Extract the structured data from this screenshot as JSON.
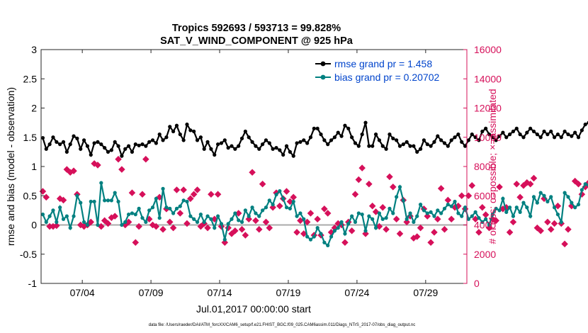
{
  "chart_data": {
    "type": "line",
    "title": "Tropics 592693 / 593713 = 99.828%",
    "subtitle": "SAT_V_WIND_COMPONENT @ 925 hPa",
    "xlabel": "Jul.01,2017 00:00:00 start",
    "ylabel": "rmse and bias (model - observation)",
    "y2label": "# of obs: o=possible; ×=assimilated",
    "footer": "data file: /Users/raeder/DAI/ATM_forcXX/CAM6_setup/f.e21.FHIST_BGC.f09_025.CAM6assim.011/Diags_NTrS_2017-07/obs_diag_output.nc",
    "xlim": [
      1,
      32
    ],
    "ylim": [
      -1,
      3
    ],
    "y2lim": [
      0,
      16000
    ],
    "x_ticks": [
      4,
      9,
      14,
      19,
      24,
      29
    ],
    "x_tick_labels": [
      "07/04",
      "07/09",
      "07/14",
      "07/19",
      "07/24",
      "07/29"
    ],
    "y_ticks": [
      -1,
      -0.5,
      0,
      0.5,
      1,
      1.5,
      2,
      2.5,
      3
    ],
    "y_tick_labels": [
      "-1",
      "-0.5",
      "0",
      "0.5",
      "1",
      "1.5",
      "2",
      "2.5",
      "3"
    ],
    "y2_ticks": [
      0,
      2000,
      4000,
      6000,
      8000,
      10000,
      12000,
      14000,
      16000
    ],
    "y2_tick_labels": [
      "0",
      "2000",
      "4000",
      "6000",
      "8000",
      "10000",
      "12000",
      "14000",
      "16000"
    ],
    "legend_position": "top-right",
    "colors": {
      "rmse": "#000000",
      "bias": "#008080",
      "obs": "#d6105a",
      "zero": "#aaaaaa",
      "legend_text": "#0044cc",
      "axis_right": "#d6105a"
    },
    "x_start": 1.125,
    "x_step": 0.25,
    "series": [
      {
        "name": "rmse grand pr = 1.458",
        "values": [
          1.49,
          1.3,
          1.38,
          1.5,
          1.42,
          1.38,
          1.42,
          1.25,
          1.38,
          1.52,
          1.48,
          1.3,
          1.45,
          1.35,
          1.2,
          1.4,
          1.42,
          1.38,
          1.32,
          1.25,
          1.28,
          1.42,
          1.35,
          1.18,
          1.3,
          1.35,
          1.25,
          1.38,
          1.36,
          1.38,
          1.35,
          1.42,
          1.45,
          1.4,
          1.55,
          1.45,
          1.5,
          1.68,
          1.6,
          1.7,
          1.55,
          1.45,
          1.72,
          1.62,
          1.6,
          1.45,
          1.5,
          1.3,
          1.42,
          1.3,
          1.2,
          1.38,
          1.4,
          1.45,
          1.32,
          1.35,
          1.3,
          1.35,
          1.48,
          1.6,
          1.5,
          1.42,
          1.35,
          1.3,
          1.38,
          1.45,
          1.4,
          1.3,
          1.32,
          1.28,
          1.2,
          1.35,
          1.25,
          1.18,
          1.4,
          1.42,
          1.45,
          1.4,
          1.5,
          1.65,
          1.65,
          1.55,
          1.45,
          1.38,
          1.45,
          1.5,
          1.58,
          1.52,
          1.7,
          1.65,
          1.5,
          1.4,
          1.35,
          1.55,
          1.75,
          1.35,
          1.35,
          1.55,
          1.45,
          1.35,
          1.3,
          1.55,
          1.48,
          1.45,
          1.35,
          1.38,
          1.42,
          1.35,
          1.35,
          1.25,
          1.3,
          1.45,
          1.38,
          1.35,
          1.42,
          1.52,
          1.45,
          1.4,
          1.35,
          1.45,
          1.5,
          1.55,
          1.42,
          1.35,
          1.45,
          1.55,
          1.5,
          1.45,
          1.6,
          1.65,
          1.55,
          1.5,
          1.45,
          1.52,
          1.58,
          1.5,
          1.55,
          1.6,
          1.65,
          1.55,
          1.5,
          1.58,
          1.65,
          1.6,
          1.55,
          1.5,
          1.6,
          1.55,
          1.6,
          1.5,
          1.55,
          1.5,
          1.6,
          1.55,
          1.52,
          1.58,
          1.5,
          1.62,
          1.72,
          1.75,
          1.7,
          1.6,
          1.55,
          1.8,
          1.65,
          1.62
        ]
      },
      {
        "name": "bias grand pr = 0.20702",
        "values": [
          0.18,
          0.05,
          0.15,
          0.25,
          0.05,
          0.3,
          0.1,
          0.15,
          -0.05,
          0.15,
          0.5,
          0.38,
          0.05,
          0.0,
          0.4,
          0.4,
          0.0,
          0.72,
          0.42,
          0.42,
          0.42,
          0.55,
          0.4,
          0.0,
          0.05,
          0.18,
          0.2,
          0.18,
          0.28,
          0.12,
          0.05,
          0.25,
          0.3,
          0.45,
          0.12,
          0.62,
          0.3,
          0.28,
          0.2,
          0.28,
          0.32,
          0.42,
          0.4,
          0.15,
          0.1,
          0.05,
          0.18,
          0.05,
          0.15,
          0.1,
          -0.05,
          0.15,
          0.02,
          -0.25,
          0.02,
          0.1,
          0.2,
          0.08,
          0.05,
          0.25,
          0.15,
          0.3,
          0.2,
          0.15,
          0.25,
          0.3,
          0.42,
          0.35,
          0.52,
          0.58,
          0.45,
          0.3,
          0.28,
          0.4,
          0.15,
          0.2,
          0.1,
          -0.2,
          -0.25,
          -0.2,
          -0.05,
          -0.15,
          -0.3,
          -0.35,
          -0.2,
          -0.1,
          -0.05,
          0.05,
          -0.15,
          0.02,
          0.15,
          0.05,
          0.2,
          0.18,
          -0.1,
          0.15,
          0.1,
          -0.05,
          0.2,
          0.1,
          0.12,
          0.28,
          0.2,
          0.48,
          0.65,
          0.42,
          0.1,
          0.2,
          0.05,
          0.15,
          0.35,
          0.25,
          0.2,
          0.22,
          0.15,
          0.25,
          0.2,
          0.28,
          0.35,
          0.32,
          0.4,
          0.2,
          0.15,
          0.3,
          0.1,
          0.15,
          0.22,
          0.12,
          0.05,
          0.1,
          0.0,
          0.18,
          0.28,
          0.25,
          0.45,
          0.22,
          0.3,
          0.15,
          0.3,
          0.22,
          0.38,
          0.3,
          0.15,
          0.48,
          0.38,
          0.55,
          0.5,
          0.4,
          0.48,
          0.3,
          0.18,
          0.05,
          0.55,
          0.48,
          0.38,
          0.3,
          0.35,
          0.6,
          0.7,
          0.68,
          0.35,
          0.2,
          0.05,
          0.32,
          0.05,
          0.18
        ]
      },
      {
        "name": "obs possible",
        "values": [
          6300,
          5900,
          3900,
          3900,
          3950,
          5800,
          5700,
          7800,
          7600,
          7700,
          6100,
          4000,
          3900,
          4000,
          4200,
          8200,
          8100,
          3900,
          4300,
          4100,
          4500,
          4600,
          8500,
          7800,
          4000,
          4200,
          6200,
          2800,
          3900,
          6100,
          8500,
          4400,
          4000,
          3900,
          5900,
          3700,
          5100,
          4200,
          3800,
          6400,
          4800,
          6400,
          4100,
          5800,
          6100,
          6400,
          3900,
          4100,
          3800,
          6100,
          4400,
          6100,
          3900,
          2800,
          3800,
          3400,
          3600,
          4800,
          3700,
          3300,
          4400,
          7600,
          4300,
          3700,
          6800,
          4200,
          3800,
          5200,
          6200,
          5300,
          5800,
          6300,
          5600,
          5900,
          3500,
          4300,
          3400,
          4200,
          4800,
          3300,
          4400,
          3300,
          5100,
          4800,
          3500,
          3800,
          4100,
          4000,
          2800,
          4200,
          3600,
          6100,
          7100,
          7900,
          3400,
          6800,
          5300,
          4900,
          3900,
          5200,
          3700,
          7300,
          6600,
          4400,
          3400,
          5700,
          4200,
          4600,
          3100,
          3200,
          3800,
          5100,
          4600,
          2800,
          3500,
          4400,
          6500,
          3700,
          5700,
          4400,
          5200,
          5300,
          6000,
          5100,
          6000,
          6700,
          4400,
          3500,
          5200,
          4700,
          3800,
          4400,
          4300,
          6600,
          5100,
          5200,
          3500,
          4200,
          6800,
          5900,
          6700,
          6900,
          6800,
          7200,
          3800,
          3600,
          5800,
          4200,
          3700,
          4100,
          5300,
          4100,
          2700,
          3700,
          5300,
          7000,
          6800,
          6100,
          6600,
          6900,
          6800,
          7300,
          4600,
          3900,
          5800,
          3600,
          4300,
          3800,
          5200,
          4300,
          3300,
          6700,
          6400,
          3800,
          4200,
          2400,
          0
        ]
      }
    ]
  }
}
